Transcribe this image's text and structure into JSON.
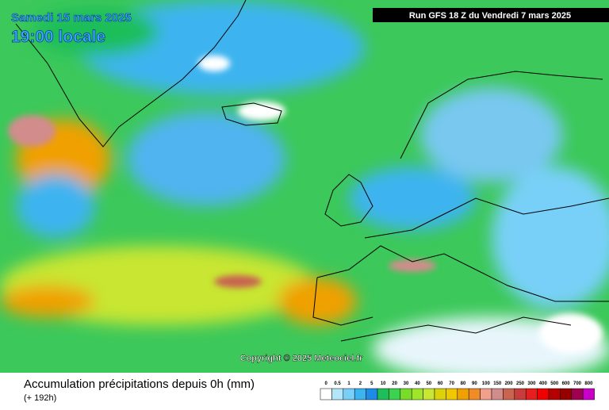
{
  "header": {
    "date": "Samedi 15 mars 2025",
    "time": "19:00 locale",
    "run": "Run GFS 18 Z du Vendredi 7 mars 2025"
  },
  "copyright": "Copyright © 2025 Meteociel.fr",
  "legend": {
    "title": "Accumulation précipitations depuis 0h (mm)",
    "subtitle": "(+ 192h)",
    "labels": [
      0,
      0.5,
      1,
      2,
      5,
      10,
      20,
      30,
      40,
      50,
      60,
      70,
      80,
      90,
      100,
      150,
      200,
      250,
      300,
      400,
      500,
      600,
      700,
      800
    ],
    "colors": [
      "#ffffff",
      "#b4e6fa",
      "#78d0f8",
      "#3cb4f0",
      "#1e8ce6",
      "#1ebe5a",
      "#3cd250",
      "#78dc28",
      "#a0e628",
      "#c8e632",
      "#dcd20a",
      "#f0c800",
      "#f0a000",
      "#f08c28",
      "#f0a08c",
      "#d28c8c",
      "#c86450",
      "#c83c3c",
      "#e61e1e",
      "#f00000",
      "#b40000",
      "#960000",
      "#a00050",
      "#c800c8"
    ]
  }
}
